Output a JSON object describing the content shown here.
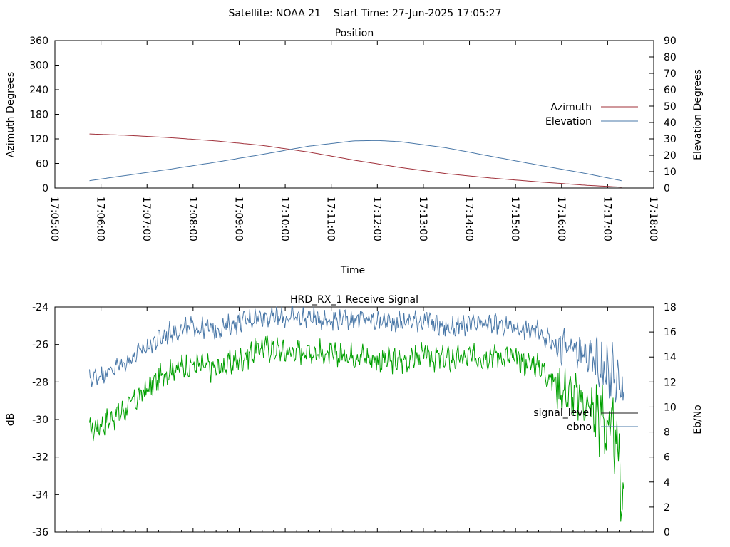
{
  "page": {
    "title": "Satellite: NOAA 21    Start Time: 27-Jun-2025 17:05:27"
  },
  "colors": {
    "azimuth": "#a0303a",
    "elevation": "#4a78a8",
    "signal_level": "#1a1a1a",
    "ebno": "#4a78a8",
    "signal_green": "#00a000"
  },
  "chart_data": [
    {
      "type": "line",
      "title": "Position",
      "xlabel": "Time",
      "ylabel": "Azimuth Degrees",
      "y2label": "Elevation Degrees",
      "xticks": [
        "17:05:00",
        "17:06:00",
        "17:07:00",
        "17:08:00",
        "17:09:00",
        "17:10:00",
        "17:11:00",
        "17:12:00",
        "17:13:00",
        "17:14:00",
        "17:15:00",
        "17:16:00",
        "17:17:00",
        "17:18:00"
      ],
      "xlim_min": [
        0,
        13
      ],
      "ylim": [
        0,
        360
      ],
      "yticks": [
        0,
        60,
        120,
        180,
        240,
        300,
        360
      ],
      "y2lim": [
        0,
        90
      ],
      "y2ticks": [
        0,
        10,
        20,
        30,
        40,
        50,
        60,
        70,
        80,
        90
      ],
      "legend": "right",
      "series": [
        {
          "name": "Azimuth",
          "axis": "y",
          "x": [
            0.75,
            1.5,
            2.5,
            3.5,
            4.5,
            5.5,
            6.5,
            7.5,
            8.5,
            9.5,
            10.5,
            11.5,
            12.3
          ],
          "values": [
            132,
            129,
            123,
            115,
            104,
            88,
            68,
            50,
            35,
            24,
            15,
            7,
            2
          ]
        },
        {
          "name": "Elevation",
          "axis": "y2",
          "x": [
            0.75,
            1.5,
            2.5,
            3.5,
            4.5,
            5.5,
            6.5,
            7.0,
            7.5,
            8.5,
            9.5,
            10.5,
            11.5,
            12.3
          ],
          "values": [
            4.5,
            7.5,
            11.5,
            15.8,
            20.5,
            25.5,
            28.8,
            29,
            28.3,
            24.5,
            19.2,
            14,
            9,
            4.5
          ]
        }
      ]
    },
    {
      "type": "line",
      "title": "HRD_RX_1 Receive Signal",
      "ylabel": "dB",
      "y2label": "Eb/No",
      "xlim_min": [
        0,
        13
      ],
      "ylim": [
        -36,
        -24
      ],
      "yticks": [
        -36,
        -34,
        -32,
        -30,
        -28,
        -26,
        -24
      ],
      "y2lim": [
        0,
        18
      ],
      "y2ticks": [
        0,
        2,
        4,
        6,
        8,
        10,
        12,
        14,
        16,
        18
      ],
      "legend": "right",
      "series": [
        {
          "name": "signal_level",
          "axis": "y",
          "x": [
            0.75,
            1.5,
            2.0,
            2.5,
            3.0,
            3.5,
            4.0,
            4.5,
            5.0,
            5.5,
            6.0,
            6.5,
            7.0,
            7.5,
            8.0,
            8.5,
            9.0,
            9.5,
            10.0,
            10.5,
            11.0,
            11.5,
            11.9,
            12.2,
            12.35
          ],
          "values": [
            -30.6,
            -29.5,
            -28.4,
            -27.3,
            -27.1,
            -27.3,
            -26.8,
            -26.1,
            -26.4,
            -26.3,
            -26.6,
            -26.5,
            -26.8,
            -26.9,
            -26.6,
            -26.8,
            -26.7,
            -26.5,
            -26.8,
            -27.1,
            -28.4,
            -29.1,
            -29.9,
            -31.5,
            -34.5
          ]
        },
        {
          "name": "ebno",
          "axis": "y2",
          "x": [
            0.75,
            1.5,
            2.0,
            2.5,
            3.0,
            3.5,
            4.0,
            4.5,
            5.0,
            5.5,
            6.0,
            6.5,
            7.0,
            7.5,
            8.0,
            8.5,
            9.0,
            9.5,
            10.0,
            10.5,
            11.0,
            11.5,
            11.9,
            12.2,
            12.35
          ],
          "values": [
            12.2,
            13.5,
            14.8,
            16.0,
            16.4,
            16.2,
            16.8,
            17.3,
            17.1,
            17.2,
            17.0,
            17.1,
            16.9,
            16.8,
            17.0,
            16.3,
            16.5,
            16.6,
            16.4,
            16.0,
            14.8,
            14.2,
            13.2,
            12.2,
            10.2
          ]
        }
      ]
    }
  ]
}
